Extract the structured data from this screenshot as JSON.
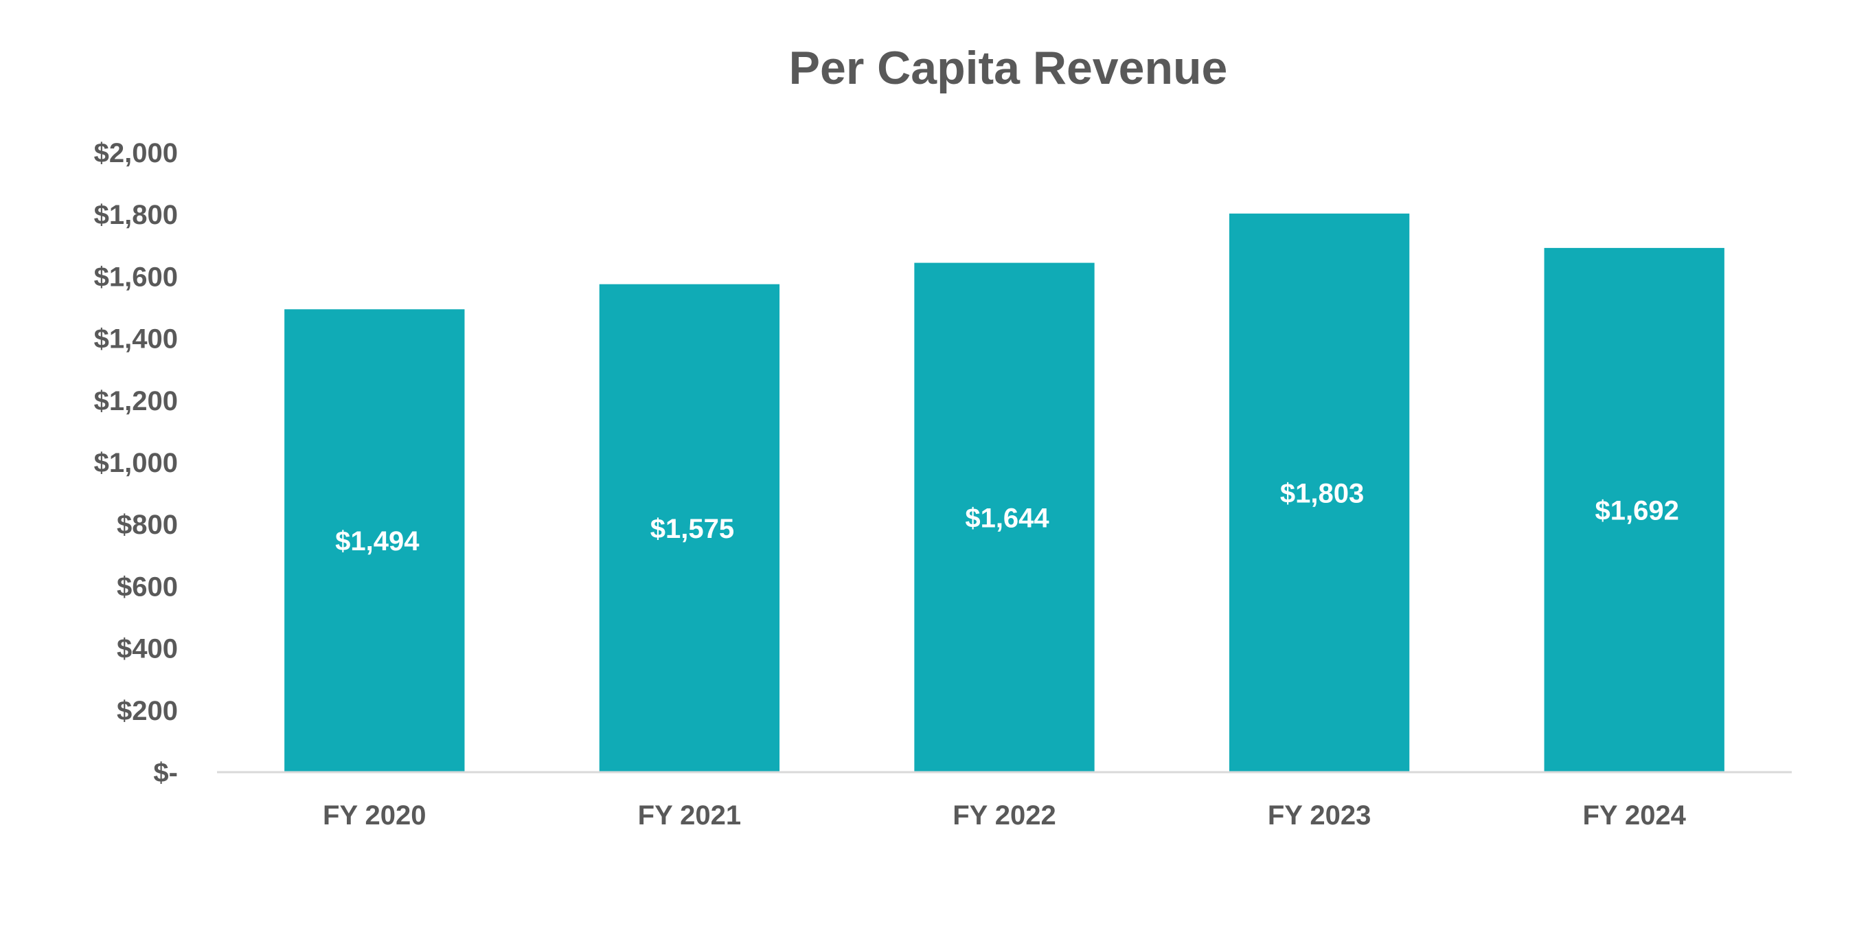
{
  "chart_data": {
    "type": "bar",
    "title": "Per Capita Revenue",
    "xlabel": "",
    "ylabel": "",
    "categories": [
      "FY 2020",
      "FY 2021",
      "FY 2022",
      "FY 2023",
      "FY 2024"
    ],
    "values": [
      1494,
      1575,
      1644,
      1803,
      1692
    ],
    "data_labels": [
      "$1,494",
      "$1,575",
      "$1,644",
      "$1,803",
      "$1,692"
    ],
    "ylim": [
      0,
      2000
    ],
    "yticks": [
      0,
      200,
      400,
      600,
      800,
      1000,
      1200,
      1400,
      1600,
      1800,
      2000
    ],
    "ytick_labels": [
      "$-",
      "$200",
      "$400",
      "$600",
      "$800",
      "$1,000",
      "$1,200",
      "$1,400",
      "$1,600",
      "$1,800",
      "$2,000"
    ],
    "grid": false,
    "legend": "none",
    "colors": {
      "bar": "#10ABB6",
      "text": "#595959",
      "axis": "#D9D9D9",
      "data_label": "#FFFFFF"
    }
  }
}
